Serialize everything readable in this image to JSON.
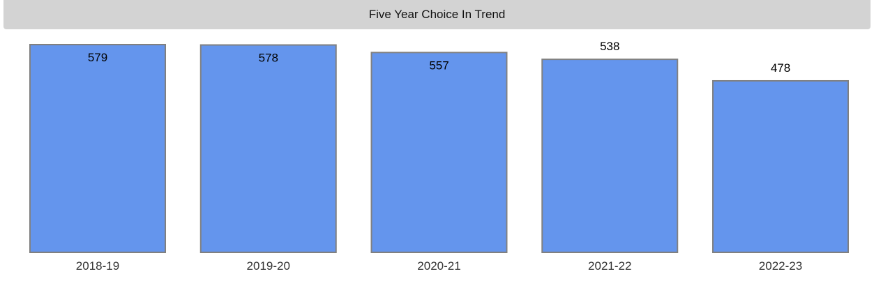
{
  "chart_data": {
    "type": "bar",
    "title": "Five Year Choice In Trend",
    "categories": [
      "2018-19",
      "2019-20",
      "2020-21",
      "2021-22",
      "2022-23"
    ],
    "values": [
      579,
      578,
      557,
      538,
      478
    ],
    "xlabel": "",
    "ylabel": "",
    "ylim": [
      0,
      579
    ],
    "grid": false,
    "legend": "none",
    "colors": {
      "bar_fill": "#6495ed",
      "bar_stroke": "#808080",
      "title_background": "#d3d3d3",
      "label_text": "#000000",
      "tick_text": "#333333"
    }
  }
}
